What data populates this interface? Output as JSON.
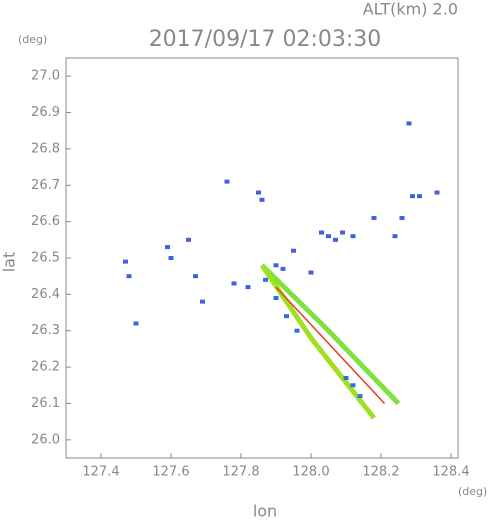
{
  "chart_data": {
    "type": "scatter",
    "header": "ALT(km)  2.0",
    "title": "2017/09/17 02:03:30",
    "y_unit": "(deg)",
    "x_unit": "(deg)",
    "ylabel": "lat",
    "xlabel": "lon",
    "xlim": [
      127.3,
      128.42
    ],
    "ylim": [
      25.95,
      27.05
    ],
    "xticks": [
      127.4,
      127.6,
      127.8,
      {
        "value": 128.0,
        "label": "128.0"
      },
      128.2,
      128.4
    ],
    "yticks": [
      {
        "value": 26.0,
        "label": "26.0"
      },
      26.1,
      26.2,
      26.3,
      26.4,
      26.5,
      26.6,
      26.7,
      26.8,
      26.9,
      {
        "value": 27.0,
        "label": "27.0"
      }
    ],
    "series": [
      {
        "color": "#4060e0",
        "x": [
          127.47,
          127.48,
          127.5,
          127.59,
          127.6,
          127.65,
          127.67,
          127.69,
          127.76,
          127.78,
          127.82,
          127.85,
          127.86,
          127.9,
          127.92,
          127.95,
          128.0,
          128.03,
          128.05,
          128.07,
          128.09,
          128.12,
          128.18,
          128.24,
          128.26,
          128.28,
          128.29,
          128.31,
          128.36
        ],
        "y": [
          26.49,
          26.45,
          26.32,
          26.53,
          26.5,
          26.55,
          26.45,
          26.38,
          26.71,
          26.43,
          26.42,
          26.68,
          26.66,
          26.48,
          26.47,
          26.52,
          26.46,
          26.57,
          26.56,
          26.55,
          26.57,
          26.56,
          26.61,
          26.56,
          26.61,
          26.87,
          26.67,
          26.67,
          26.68
        ]
      },
      {
        "color": "#3070e0",
        "x": [
          127.87,
          127.9,
          127.93,
          127.96,
          128.1,
          128.12,
          128.14
        ],
        "y": [
          26.44,
          26.39,
          26.34,
          26.3,
          26.17,
          26.15,
          26.12
        ]
      }
    ],
    "bands": [
      {
        "color": "#80e040",
        "x": [
          127.86,
          128.05,
          128.25
        ],
        "y": [
          26.48,
          26.3,
          26.1
        ]
      },
      {
        "color": "#a0e020",
        "x": [
          127.86,
          128.0,
          128.18
        ],
        "y": [
          26.48,
          26.28,
          26.06
        ]
      },
      {
        "color": "#e04020",
        "x": [
          127.9,
          128.21
        ],
        "y": [
          26.42,
          26.1
        ]
      }
    ]
  }
}
